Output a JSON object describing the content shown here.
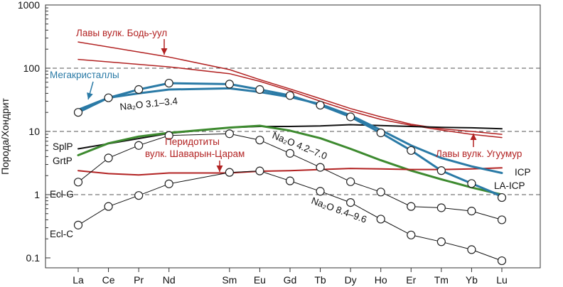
{
  "chart_data": {
    "type": "line",
    "ylabel": "Порода/Хондрит",
    "xlabel": "",
    "yscale": "log",
    "ylim": [
      0.08,
      1000
    ],
    "yticks": [
      {
        "value": 1000,
        "label": "1000"
      },
      {
        "value": 100,
        "label": "100"
      },
      {
        "value": 10,
        "label": "10"
      },
      {
        "value": 1,
        "label": "1"
      },
      {
        "value": 0.1,
        "label": "0.1"
      }
    ],
    "dashed_gridlines": [
      100,
      10,
      1
    ],
    "x_positions": [
      0,
      1,
      2,
      3,
      5,
      6,
      7,
      8,
      9,
      10,
      11,
      12,
      13,
      14
    ],
    "categories": [
      "La",
      "Ce",
      "Pr",
      "Nd",
      "Sm",
      "Eu",
      "Gd",
      "Tb",
      "Dy",
      "Ho",
      "Er",
      "Tm",
      "Yb",
      "Lu"
    ],
    "series": [
      {
        "name": "Лавы вулк. Бодь-уул",
        "kind": "line",
        "color": "#b22222",
        "width": 1.5,
        "x": [
          0,
          3,
          5,
          6,
          7,
          8,
          9,
          10,
          11,
          12,
          13,
          14
        ],
        "values": [
          260,
          150,
          95,
          66,
          47,
          33,
          23,
          17,
          13,
          11,
          10,
          9
        ]
      },
      {
        "name": "",
        "kind": "line",
        "color": "#b22222",
        "width": 1.5,
        "x": [
          0,
          3,
          5,
          6,
          7,
          8,
          9,
          10,
          11,
          12,
          13,
          14
        ],
        "values": [
          138,
          105,
          82,
          62,
          44,
          30,
          21,
          15.5,
          12.5,
          10.5,
          9,
          8
        ]
      },
      {
        "name": "SplP",
        "kind": "line",
        "color": "#111111",
        "width": 2,
        "x": [
          0,
          3,
          5,
          6,
          7,
          8,
          9,
          10,
          11,
          12,
          13,
          14
        ],
        "values": [
          5.3,
          9.3,
          11.5,
          12,
          12,
          12.2,
          12.8,
          12.4,
          12,
          11.6,
          11.4,
          11
        ]
      },
      {
        "name": "GrtP",
        "kind": "line",
        "color": "#3d8a2f",
        "width": 3,
        "x": [
          0,
          1,
          2,
          3,
          5,
          6,
          7,
          8,
          9,
          10,
          11,
          12,
          13,
          14
        ],
        "values": [
          4.2,
          6.5,
          8.3,
          9.5,
          11.5,
          12.3,
          10.3,
          7.8,
          5.3,
          3.5,
          2.4,
          1.75,
          1.3,
          1
        ]
      },
      {
        "name": "Перидотиты вулк. Шаварын-Царам",
        "kind": "line",
        "color": "#b22222",
        "width": 2,
        "x": [
          0,
          1,
          2,
          3,
          5,
          6,
          7,
          8,
          9,
          10,
          11,
          12,
          13,
          14
        ],
        "values": [
          2.4,
          2.15,
          2.05,
          2.2,
          2.2,
          2.35,
          2.4,
          2.5,
          2.6,
          2.55,
          2.5,
          2.5,
          2.55,
          2.65
        ]
      },
      {
        "name": "ICP",
        "kind": "line",
        "color": "#2a7aa6",
        "width": 3,
        "x": [
          0,
          1,
          2,
          3,
          5,
          6,
          7,
          8,
          9,
          10,
          11,
          12,
          13,
          14
        ],
        "values": [
          22,
          34,
          40,
          46,
          48,
          42,
          35,
          27,
          18,
          10.5,
          6,
          3.8,
          2.8,
          2.2
        ]
      },
      {
        "name": "LA-ICP",
        "kind": "line",
        "color": "#2a7aa6",
        "width": 3,
        "x": [
          0,
          1,
          2,
          3,
          5,
          6,
          7,
          8,
          9,
          10,
          11,
          12,
          13,
          14
        ],
        "values": [
          20,
          34,
          46,
          58,
          56,
          46,
          37,
          26,
          17,
          9.5,
          5,
          2.4,
          1.5,
          0.95
        ]
      },
      {
        "name": "Na₂O 3.1–3.4",
        "kind": "points",
        "color": "#2a7aa6",
        "x": [
          0,
          1,
          2,
          3,
          5,
          6,
          7,
          8,
          9,
          10,
          11,
          12,
          13,
          14
        ],
        "values": [
          20,
          34,
          46,
          58,
          56,
          46,
          37,
          26,
          17,
          9.5,
          5,
          2.4,
          1.5,
          0.9
        ]
      },
      {
        "name": "Ecl-G",
        "kind": "points",
        "color": "#111111",
        "x": [
          0,
          1,
          2,
          3,
          5,
          6,
          7,
          8,
          9,
          10,
          11,
          12,
          13,
          14
        ],
        "values": [
          1.58,
          3.8,
          6,
          8.6,
          9.2,
          7.3,
          4.5,
          2.7,
          1.6,
          1.1,
          0.65,
          0.62,
          0.55,
          0.4
        ]
      },
      {
        "name": "Ecl-C",
        "kind": "points",
        "color": "#111111",
        "x": [
          0,
          1,
          2,
          3,
          5,
          6,
          7,
          8,
          9,
          10,
          11,
          12,
          13,
          14
        ],
        "values": [
          0.33,
          0.65,
          0.97,
          1.48,
          2.25,
          2.37,
          1.65,
          1.13,
          0.75,
          0.41,
          0.23,
          0.18,
          0.135,
          0.09
        ]
      }
    ],
    "annotations": [
      {
        "id": "bod",
        "text": "Лавы вулк. Бодь-уул",
        "color": "#b22222"
      },
      {
        "id": "mega",
        "text": "Мегакристаллы",
        "color": "#2a7aa6"
      },
      {
        "id": "na1",
        "text": "Na₂O 3.1–3.4",
        "color": "#111111"
      },
      {
        "id": "na2",
        "text": "Na₂O 4.2–7.0",
        "color": "#111111"
      },
      {
        "id": "na3",
        "text": "Na₂O 8.4–9.6",
        "color": "#111111"
      },
      {
        "id": "shav1",
        "text": "Перидотиты",
        "color": "#b22222"
      },
      {
        "id": "shav2",
        "text": "вулк. Шаварын-Царам",
        "color": "#b22222"
      },
      {
        "id": "ugu",
        "text": "Лавы вулк. Угуумур",
        "color": "#b22222"
      },
      {
        "id": "splp",
        "text": "SplP",
        "color": "#111111"
      },
      {
        "id": "grtp",
        "text": "GrtP",
        "color": "#111111"
      },
      {
        "id": "eclg",
        "text": "Ecl-G",
        "color": "#111111"
      },
      {
        "id": "eclc",
        "text": "Ecl-C",
        "color": "#111111"
      },
      {
        "id": "icp",
        "text": "ICP",
        "color": "#111111"
      },
      {
        "id": "laicp",
        "text": "LA-ICP",
        "color": "#111111"
      }
    ]
  }
}
